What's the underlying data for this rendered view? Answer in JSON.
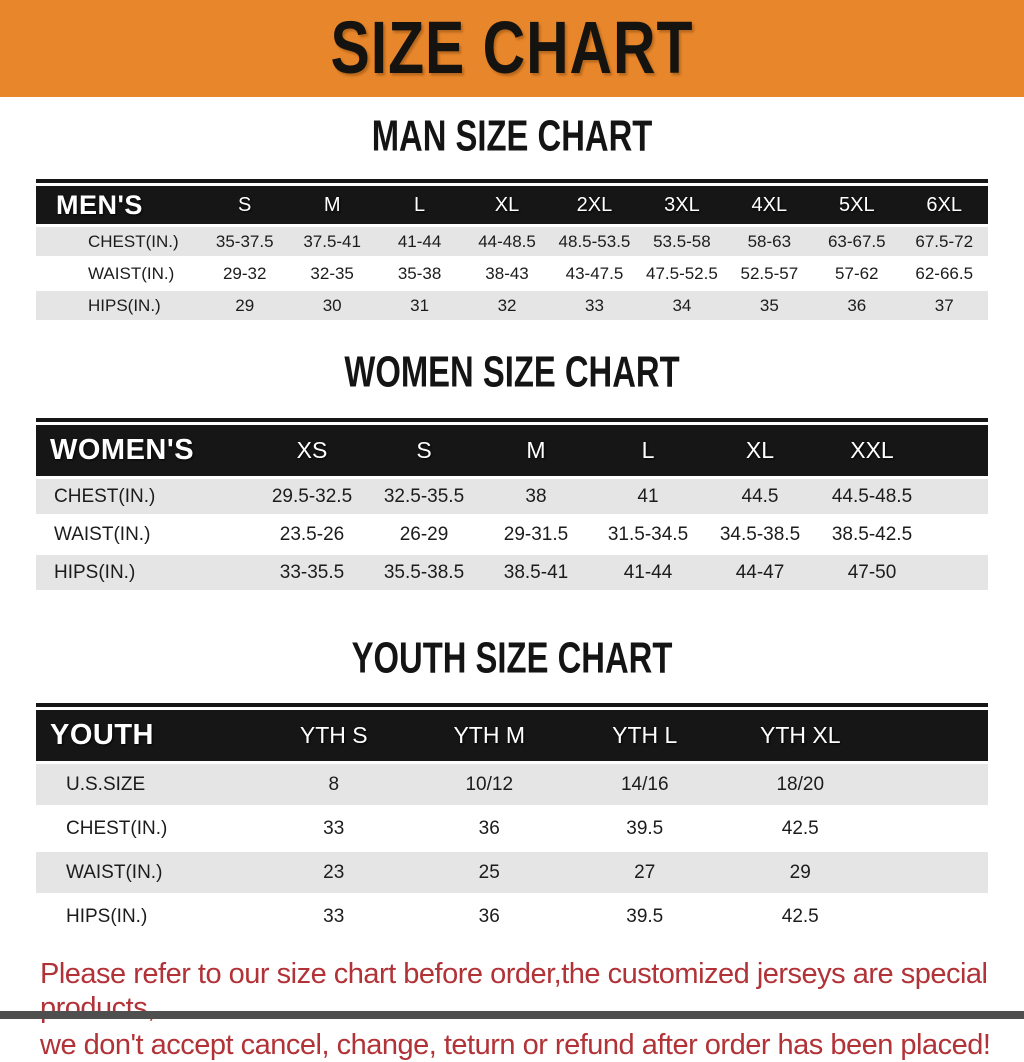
{
  "banner": {
    "title": "SIZE CHART"
  },
  "sections": [
    {
      "heading": "MAN SIZE CHART",
      "table": {
        "header": [
          "MEN'S",
          "S",
          "M",
          "L",
          "XL",
          "2XL",
          "3XL",
          "4XL",
          "5XL",
          "6XL"
        ],
        "rows": [
          [
            "CHEST(IN.)",
            "35-37.5",
            "37.5-41",
            "41-44",
            "44-48.5",
            "48.5-53.5",
            "53.5-58",
            "58-63",
            "63-67.5",
            "67.5-72"
          ],
          [
            "WAIST(IN.)",
            "29-32",
            "32-35",
            "35-38",
            "38-43",
            "43-47.5",
            "47.5-52.5",
            "52.5-57",
            "57-62",
            "62-66.5"
          ],
          [
            "HIPS(IN.)",
            "29",
            "30",
            "31",
            "32",
            "33",
            "34",
            "35",
            "36",
            "37"
          ]
        ]
      }
    },
    {
      "heading": "WOMEN SIZE CHART",
      "table": {
        "header": [
          "WOMEN'S",
          "XS",
          "S",
          "M",
          "L",
          "XL",
          "XXL"
        ],
        "rows": [
          [
            "CHEST(IN.)",
            "29.5-32.5",
            "32.5-35.5",
            "38",
            "41",
            "44.5",
            "44.5-48.5"
          ],
          [
            "WAIST(IN.)",
            "23.5-26",
            "26-29",
            "29-31.5",
            "31.5-34.5",
            "34.5-38.5",
            "38.5-42.5"
          ],
          [
            "HIPS(IN.)",
            "33-35.5",
            "35.5-38.5",
            "38.5-41",
            "41-44",
            "44-47",
            "47-50"
          ]
        ]
      }
    },
    {
      "heading": "YOUTH SIZE CHART",
      "table": {
        "header": [
          "YOUTH",
          "YTH S",
          "YTH M",
          "YTH L",
          "YTH XL"
        ],
        "rows": [
          [
            "U.S.SIZE",
            "8",
            "10/12",
            "14/16",
            "18/20"
          ],
          [
            "CHEST(IN.)",
            "33",
            "36",
            "39.5",
            "42.5"
          ],
          [
            "WAIST(IN.)",
            "23",
            "25",
            "27",
            "29"
          ],
          [
            "HIPS(IN.)",
            "33",
            "36",
            "39.5",
            "42.5"
          ]
        ]
      }
    }
  ],
  "footer": {
    "line1": "Please refer to our size chart before order,the customized jerseys are special products,",
    "line2": "we don't accept cancel, change, teturn or refund after order has been placed!"
  },
  "colors": {
    "banner-orange": "#e8862b",
    "band-black": "#161616",
    "row-gray": "#e5e5e5",
    "note-red": "#b13237",
    "bottom-bar-gray": "#4f4f4f"
  }
}
